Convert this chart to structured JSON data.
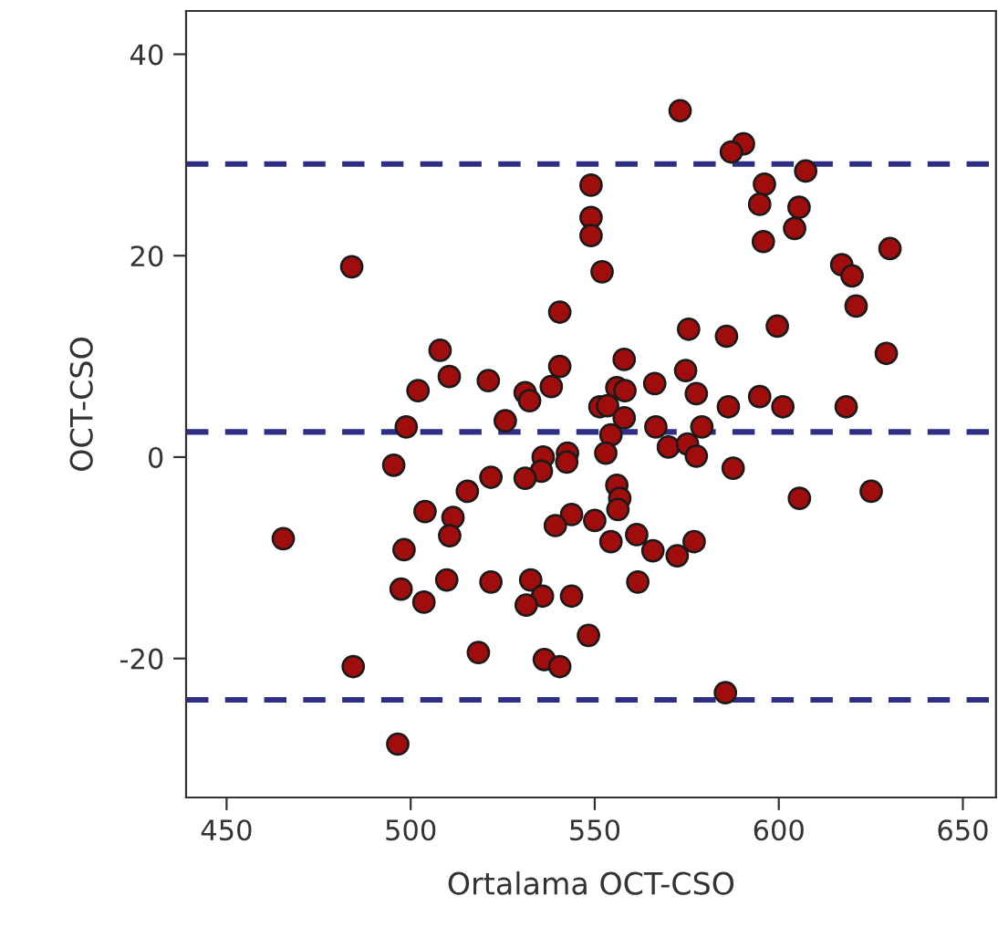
{
  "chart_data": {
    "type": "scatter",
    "xlabel": "Ortalama OCT-CSO",
    "ylabel": "OCT-CSO",
    "xlim": [
      439,
      659
    ],
    "ylim": [
      -33.8,
      44.3
    ],
    "xticks": [
      450,
      500,
      550,
      600,
      650
    ],
    "yticks": [
      -20,
      0,
      20,
      40
    ],
    "grid": false,
    "marker": "circle",
    "series": [
      {
        "color": "#a00d0d",
        "x": [
          484.0,
          549.0,
          549.0,
          549.0,
          552.0,
          540.5,
          508.0,
          540.5,
          510.5,
          502.0,
          521.1,
          538.2,
          531.1,
          532.3,
          525.7,
          498.8,
          551.4,
          573.2,
          590.4,
          587.1,
          607.3,
          596.1,
          594.8,
          605.5,
          604.3,
          595.8,
          630.2,
          617.1,
          619.9,
          621.0,
          575.5,
          585.8,
          599.6,
          629.2,
          558.0,
          574.7,
          566.3,
          556.0,
          558.2,
          577.6,
          586.3,
          594.8,
          601.1,
          618.3,
          553.5,
          558.0,
          566.6,
          579.1,
          554.4,
          553.0,
          570.0,
          575.2,
          577.6,
          495.4,
          536.0,
          542.6,
          542.4,
          535.5,
          531.1,
          521.8,
          515.4,
          503.9,
          511.5,
          510.6,
          465.4,
          498.2,
          543.7,
          539.3,
          550.0,
          497.4,
          503.6,
          509.8,
          521.8,
          532.6,
          535.8,
          531.4,
          543.7,
          548.3,
          518.4,
          536.3,
          540.5,
          484.4,
          496.5,
          587.6,
          605.6,
          625.1,
          556.0,
          556.8,
          556.3,
          554.4,
          561.4,
          565.8,
          572.4,
          577.0,
          561.7,
          585.5
        ],
        "values": [
          18.9,
          27.0,
          23.8,
          22.0,
          18.4,
          14.4,
          10.6,
          9.0,
          8.0,
          6.6,
          7.6,
          7.0,
          6.4,
          5.6,
          3.6,
          3.0,
          5.0,
          34.4,
          31.1,
          30.3,
          28.4,
          27.1,
          25.1,
          24.8,
          22.7,
          21.4,
          20.7,
          19.1,
          18.0,
          15.0,
          12.7,
          12.0,
          13.0,
          10.3,
          9.7,
          8.6,
          7.3,
          6.9,
          6.6,
          6.3,
          5.0,
          6.0,
          5.0,
          5.0,
          5.1,
          3.9,
          3.0,
          3.0,
          2.2,
          0.4,
          1.0,
          1.3,
          0.1,
          -0.8,
          0.0,
          0.4,
          -0.5,
          -1.4,
          -2.1,
          -2.0,
          -3.4,
          -5.4,
          -6.0,
          -7.8,
          -8.1,
          -9.2,
          -5.7,
          -6.8,
          -6.3,
          -13.1,
          -14.4,
          -12.2,
          -12.4,
          -12.2,
          -13.8,
          -14.7,
          -13.8,
          -17.7,
          -19.4,
          -20.1,
          -20.8,
          -20.8,
          -28.5,
          -1.1,
          -4.1,
          -3.4,
          -2.8,
          -4.1,
          -5.2,
          -8.4,
          -7.7,
          -9.3,
          -9.8,
          -8.4,
          -12.4,
          -23.4
        ]
      }
    ],
    "ref_lines": [
      {
        "axis": "y",
        "value": 29.1,
        "color": "#2e2e85",
        "line_style": "dashed"
      },
      {
        "axis": "y",
        "value": 2.5,
        "color": "#2e2e85",
        "line_style": "dashed"
      },
      {
        "axis": "y",
        "value": -24.1,
        "color": "#2e2e85",
        "line_style": "dashed"
      }
    ]
  }
}
